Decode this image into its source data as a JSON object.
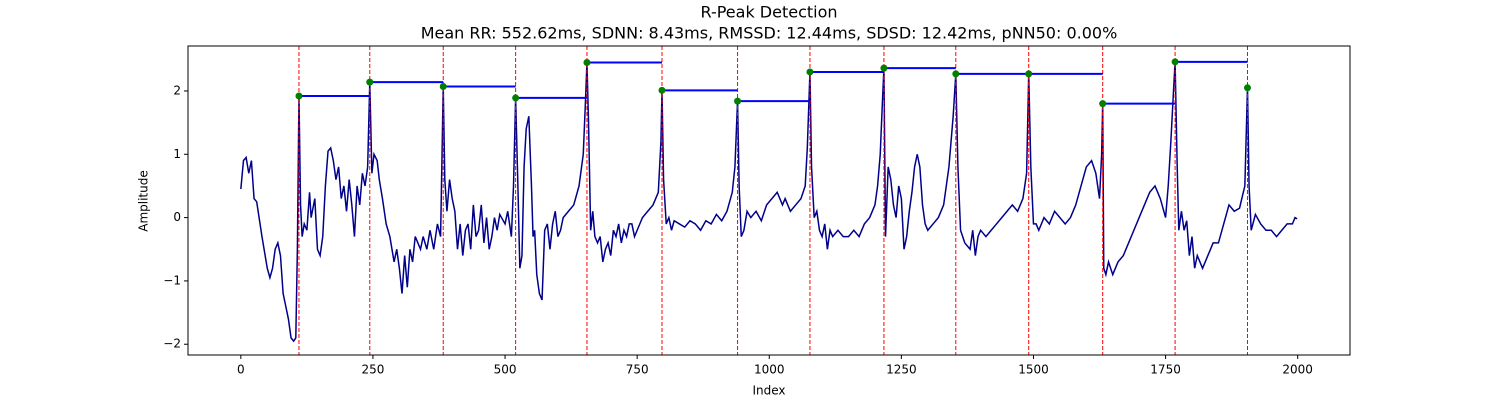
{
  "chart_data": {
    "type": "line",
    "title": "R-Peak Detection",
    "subtitle": "Mean RR: 552.62ms, SDNN: 8.43ms, RMSSD: 12.44ms, SDSD: 12.42ms, pNN50: 0.00%",
    "xlabel": "Index",
    "ylabel": "Amplitude",
    "xlim": [
      -100,
      2099
    ],
    "ylim": [
      -2.17,
      2.71
    ],
    "xticks": [
      0,
      250,
      500,
      750,
      1000,
      1250,
      1500,
      1750,
      2000
    ],
    "yticks": [
      {
        "value": -2,
        "label": "−2"
      },
      {
        "value": -1,
        "label": "−1"
      },
      0,
      1,
      2
    ],
    "series": [
      {
        "color": "#00008b",
        "x": [
          0,
          5,
          10,
          15,
          20,
          25,
          30,
          40,
          50,
          55,
          60,
          65,
          70,
          75,
          80,
          90,
          95,
          100,
          104,
          107,
          110,
          113,
          116,
          120,
          125,
          130,
          133,
          140,
          145,
          150,
          155,
          160,
          165,
          170,
          175,
          180,
          185,
          190,
          195,
          200,
          205,
          210,
          215,
          220,
          225,
          230,
          235,
          240,
          244,
          248,
          252,
          258,
          262,
          268,
          275,
          282,
          290,
          295,
          300,
          305,
          310,
          315,
          320,
          325,
          330,
          340,
          345,
          352,
          358,
          365,
          372,
          378,
          383,
          386,
          390,
          395,
          400,
          405,
          410,
          415,
          420,
          425,
          430,
          435,
          440,
          445,
          450,
          455,
          460,
          465,
          470,
          475,
          480,
          485,
          490,
          500,
          505,
          512,
          516,
          520,
          524,
          528,
          532,
          536,
          540,
          545,
          550,
          553,
          556,
          560,
          565,
          570,
          575,
          580,
          585,
          590,
          595,
          600,
          605,
          610,
          620,
          630,
          640,
          648,
          652,
          655,
          658,
          662,
          666,
          670,
          675,
          680,
          685,
          690,
          695,
          700,
          705,
          710,
          715,
          720,
          725,
          730,
          735,
          740,
          745,
          750,
          760,
          770,
          780,
          790,
          795,
          797,
          800,
          805,
          810,
          815,
          820,
          830,
          840,
          850,
          860,
          870,
          880,
          890,
          900,
          910,
          920,
          930,
          935,
          940,
          943,
          947,
          952,
          958,
          965,
          975,
          985,
          995,
          1005,
          1015,
          1025,
          1030,
          1040,
          1050,
          1060,
          1068,
          1072,
          1077,
          1080,
          1085,
          1090,
          1095,
          1100,
          1105,
          1110,
          1115,
          1120,
          1130,
          1140,
          1150,
          1160,
          1170,
          1180,
          1190,
          1200,
          1205,
          1210,
          1214,
          1217,
          1220,
          1225,
          1230,
          1235,
          1240,
          1245,
          1250,
          1255,
          1260,
          1265,
          1270,
          1275,
          1280,
          1285,
          1290,
          1295,
          1300,
          1310,
          1320,
          1330,
          1340,
          1348,
          1353,
          1357,
          1362,
          1370,
          1380,
          1385,
          1390,
          1395,
          1400,
          1410,
          1420,
          1430,
          1440,
          1450,
          1460,
          1470,
          1480,
          1487,
          1491,
          1495,
          1500,
          1505,
          1510,
          1520,
          1530,
          1540,
          1550,
          1560,
          1570,
          1580,
          1590,
          1600,
          1610,
          1618,
          1625,
          1629,
          1631,
          1633,
          1637,
          1642,
          1650,
          1660,
          1670,
          1680,
          1690,
          1700,
          1710,
          1720,
          1730,
          1740,
          1750,
          1755,
          1760,
          1765,
          1768,
          1772,
          1775,
          1780,
          1785,
          1790,
          1795,
          1800,
          1805,
          1810,
          1820,
          1830,
          1840,
          1850,
          1860,
          1870,
          1880,
          1890,
          1900,
          1905,
          1908,
          1912,
          1920,
          1930,
          1940,
          1950,
          1960,
          1970,
          1980,
          1990,
          1995,
          1999
        ],
        "values": [
          0.45,
          0.9,
          0.95,
          0.7,
          0.9,
          0.3,
          0.25,
          -0.3,
          -0.8,
          -0.95,
          -0.8,
          -0.5,
          -0.4,
          -0.6,
          -1.2,
          -1.6,
          -1.9,
          -1.95,
          -1.9,
          -0.5,
          1.92,
          0.2,
          -0.3,
          -0.1,
          -0.2,
          0.4,
          0.0,
          0.3,
          -0.5,
          -0.6,
          -0.3,
          0.5,
          1.05,
          1.1,
          0.9,
          0.6,
          0.8,
          0.3,
          0.5,
          0.1,
          0.6,
          0.2,
          -0.3,
          0.5,
          0.2,
          0.7,
          0.5,
          0.8,
          2.14,
          0.7,
          1.0,
          0.9,
          0.6,
          0.3,
          -0.1,
          -0.3,
          -0.7,
          -0.5,
          -0.8,
          -1.2,
          -0.6,
          -1.1,
          -0.5,
          -0.7,
          -0.3,
          -0.5,
          -0.3,
          -0.5,
          -0.2,
          -0.5,
          -0.1,
          -0.3,
          2.07,
          0.6,
          0.1,
          0.6,
          0.3,
          0.1,
          -0.5,
          -0.1,
          -0.6,
          -0.2,
          -0.1,
          -0.5,
          0.2,
          -0.3,
          -0.2,
          0.2,
          -0.4,
          0.0,
          -0.5,
          -0.3,
          0.0,
          -0.2,
          0.05,
          -0.1,
          0.1,
          -0.3,
          0.5,
          1.89,
          0.6,
          -0.8,
          -0.6,
          0.8,
          1.4,
          1.6,
          0.5,
          -0.3,
          -0.2,
          -0.9,
          -1.2,
          -1.3,
          -0.2,
          -0.1,
          -0.5,
          -0.1,
          0.1,
          -0.3,
          -0.2,
          0.0,
          0.1,
          0.2,
          0.5,
          1.0,
          1.8,
          2.45,
          1.5,
          -0.2,
          0.1,
          -0.3,
          -0.4,
          -0.3,
          -0.7,
          -0.5,
          -0.4,
          -0.6,
          -0.2,
          -0.3,
          -0.1,
          -0.4,
          -0.2,
          -0.3,
          -0.1,
          -0.1,
          -0.3,
          -0.2,
          0.0,
          0.1,
          0.2,
          0.4,
          1.2,
          2.01,
          0.6,
          -0.1,
          0.0,
          -0.2,
          -0.05,
          -0.1,
          -0.15,
          -0.05,
          -0.1,
          -0.2,
          -0.05,
          -0.1,
          0.05,
          -0.05,
          0.1,
          0.4,
          0.8,
          1.84,
          0.5,
          -0.3,
          -0.2,
          0.1,
          0.0,
          0.1,
          -0.05,
          0.2,
          0.3,
          0.4,
          0.2,
          0.3,
          0.1,
          0.2,
          0.3,
          0.5,
          1.1,
          2.3,
          0.8,
          0.0,
          0.1,
          -0.2,
          -0.3,
          -0.1,
          -0.5,
          -0.2,
          -0.3,
          -0.2,
          -0.3,
          -0.3,
          -0.2,
          -0.3,
          -0.1,
          0.0,
          0.2,
          0.5,
          1.0,
          1.8,
          2.36,
          -0.3,
          0.8,
          0.6,
          0.2,
          0.0,
          0.5,
          0.3,
          -0.5,
          -0.3,
          0.1,
          0.4,
          0.8,
          1.0,
          0.8,
          0.2,
          -0.1,
          -0.2,
          -0.1,
          0.0,
          0.2,
          0.8,
          1.6,
          2.27,
          0.8,
          -0.2,
          -0.4,
          -0.5,
          -0.2,
          -0.6,
          -0.3,
          -0.2,
          -0.3,
          -0.2,
          -0.1,
          0.0,
          0.1,
          0.2,
          0.1,
          0.3,
          0.7,
          2.27,
          0.8,
          -0.1,
          -0.1,
          -0.2,
          0.0,
          -0.1,
          0.1,
          0.0,
          -0.1,
          0.0,
          0.2,
          0.5,
          0.8,
          0.9,
          0.7,
          0.3,
          1.0,
          1.8,
          -0.8,
          -0.9,
          -0.7,
          -0.9,
          -0.7,
          -0.6,
          -0.4,
          -0.2,
          0.0,
          0.2,
          0.4,
          0.5,
          0.3,
          0.0,
          0.5,
          1.2,
          2.0,
          2.46,
          0.8,
          -0.2,
          0.1,
          -0.2,
          -0.05,
          -0.6,
          -0.3,
          -0.8,
          -0.6,
          -0.8,
          -0.6,
          -0.4,
          -0.4,
          -0.1,
          0.2,
          0.1,
          0.15,
          0.5,
          2.05,
          0.5,
          -0.2,
          0.05,
          -0.1,
          -0.2,
          -0.2,
          -0.3,
          -0.2,
          -0.1,
          -0.1,
          0.0,
          -0.02
        ]
      }
    ],
    "peaks": {
      "color": "green",
      "line_color": "red",
      "interval_color": "blue",
      "x": [
        110,
        244,
        383,
        520,
        655,
        797,
        940,
        1077,
        1217,
        1353,
        1491,
        1631,
        1768,
        1905
      ],
      "values": [
        1.92,
        2.14,
        2.07,
        1.89,
        2.45,
        2.01,
        1.84,
        2.3,
        2.36,
        2.27,
        2.27,
        1.8,
        2.46,
        2.05
      ]
    }
  }
}
